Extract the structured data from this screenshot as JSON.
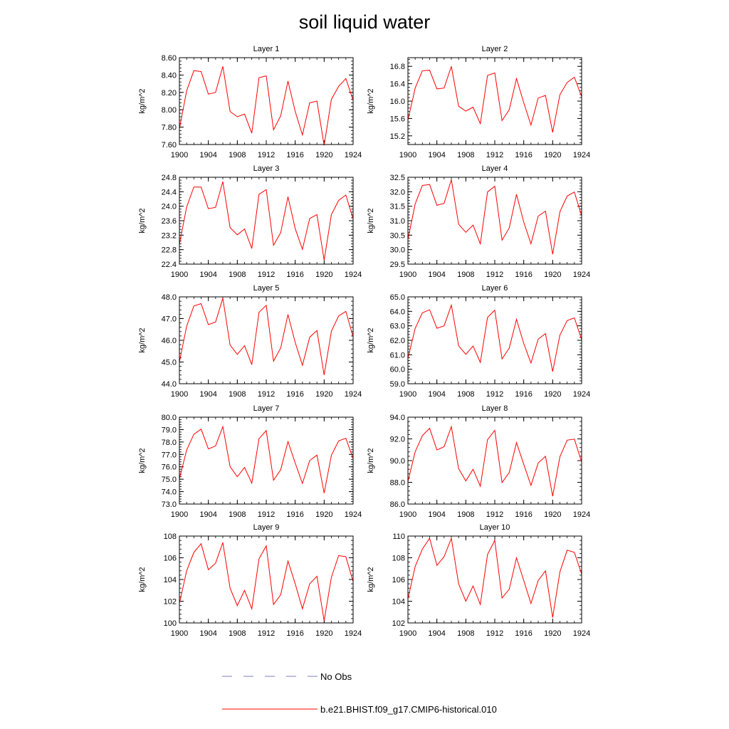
{
  "figure": {
    "title": "soil liquid water"
  },
  "legend": {
    "obs_label": "No Obs",
    "model_label": "b.e21.BHIST.f09_g17.CMIP6-historical.010",
    "obs_color": "#7f7fbf",
    "model_color": "#ff0000"
  },
  "chart_data": [
    {
      "type": "line",
      "title": "Layer 1",
      "ylabel": "kg/m^2",
      "xlim": [
        1900,
        1924
      ],
      "ylim": [
        7.6,
        8.6
      ],
      "xticks": [
        "1900",
        "1904",
        "1908",
        "1912",
        "1916",
        "1920",
        "1924"
      ],
      "yticks": [
        "7.60",
        "7.80",
        "8.00",
        "8.20",
        "8.40",
        "8.60"
      ],
      "x": [
        1900,
        1901,
        1902,
        1903,
        1904,
        1905,
        1906,
        1907,
        1908,
        1909,
        1910,
        1911,
        1912,
        1913,
        1914,
        1915,
        1916,
        1917,
        1918,
        1919,
        1920,
        1921,
        1922,
        1923,
        1924
      ],
      "series": [
        {
          "name": "b.e21.BHIST.f09_g17.CMIP6-historical.010",
          "values": [
            7.78,
            8.22,
            8.45,
            8.44,
            8.18,
            8.2,
            8.5,
            7.98,
            7.92,
            7.95,
            7.73,
            8.37,
            8.39,
            7.77,
            7.93,
            8.33,
            7.98,
            7.71,
            8.08,
            8.1,
            7.59,
            8.12,
            8.27,
            8.36,
            8.11
          ]
        }
      ]
    },
    {
      "type": "line",
      "title": "Layer 2",
      "ylabel": "kg/m^2",
      "xlim": [
        1900,
        1924
      ],
      "ylim": [
        15.0,
        17.0
      ],
      "xticks": [
        "1900",
        "1904",
        "1908",
        "1912",
        "1916",
        "1920",
        "1924"
      ],
      "yticks": [
        "15.2",
        "15.6",
        "16.0",
        "16.4",
        "16.8"
      ],
      "x": [
        1900,
        1901,
        1902,
        1903,
        1904,
        1905,
        1906,
        1907,
        1908,
        1909,
        1910,
        1911,
        1912,
        1913,
        1914,
        1915,
        1916,
        1917,
        1918,
        1919,
        1920,
        1921,
        1922,
        1923,
        1924
      ],
      "series": [
        {
          "name": "b.e21.BHIST.f09_g17.CMIP6-historical.010",
          "values": [
            15.56,
            16.3,
            16.7,
            16.71,
            16.28,
            16.3,
            16.8,
            15.88,
            15.77,
            15.86,
            15.48,
            16.59,
            16.65,
            15.55,
            15.8,
            16.52,
            15.96,
            15.45,
            16.07,
            16.13,
            15.28,
            16.15,
            16.43,
            16.55,
            16.1
          ]
        }
      ]
    },
    {
      "type": "line",
      "title": "Layer 3",
      "ylabel": "kg/m^2",
      "xlim": [
        1900,
        1924
      ],
      "ylim": [
        22.4,
        24.8
      ],
      "xticks": [
        "1900",
        "1904",
        "1908",
        "1912",
        "1916",
        "1920",
        "1924"
      ],
      "yticks": [
        "22.4",
        "22.8",
        "23.2",
        "23.6",
        "24.0",
        "24.4",
        "24.8"
      ],
      "x": [
        1900,
        1901,
        1902,
        1903,
        1904,
        1905,
        1906,
        1907,
        1908,
        1909,
        1910,
        1911,
        1912,
        1913,
        1914,
        1915,
        1916,
        1917,
        1918,
        1919,
        1920,
        1921,
        1922,
        1923,
        1924
      ],
      "series": [
        {
          "name": "b.e21.BHIST.f09_g17.CMIP6-historical.010",
          "values": [
            22.95,
            23.98,
            24.53,
            24.53,
            23.93,
            23.97,
            24.68,
            23.41,
            23.21,
            23.37,
            22.83,
            24.33,
            24.46,
            22.92,
            23.27,
            24.26,
            23.38,
            22.81,
            23.66,
            23.77,
            22.51,
            23.77,
            24.16,
            24.31,
            23.65
          ]
        }
      ]
    },
    {
      "type": "line",
      "title": "Layer 4",
      "ylabel": "kg/m^2",
      "xlim": [
        1900,
        1924
      ],
      "ylim": [
        29.5,
        32.5
      ],
      "xticks": [
        "1900",
        "1904",
        "1908",
        "1912",
        "1916",
        "1920",
        "1924"
      ],
      "yticks": [
        "29.5",
        "30.0",
        "30.5",
        "31.0",
        "31.5",
        "32.0",
        "32.5"
      ],
      "x": [
        1900,
        1901,
        1902,
        1903,
        1904,
        1905,
        1906,
        1907,
        1908,
        1909,
        1910,
        1911,
        1912,
        1913,
        1914,
        1915,
        1916,
        1917,
        1918,
        1919,
        1920,
        1921,
        1922,
        1923,
        1924
      ],
      "series": [
        {
          "name": "b.e21.BHIST.f09_g17.CMIP6-historical.010",
          "values": [
            30.35,
            31.58,
            32.22,
            32.25,
            31.53,
            31.6,
            32.42,
            30.88,
            30.6,
            30.85,
            30.2,
            31.99,
            32.19,
            30.33,
            30.75,
            31.91,
            30.95,
            30.2,
            31.16,
            31.33,
            29.84,
            31.31,
            31.85,
            31.99,
            31.17
          ]
        }
      ]
    },
    {
      "type": "line",
      "title": "Layer 5",
      "ylabel": "kg/m^2",
      "xlim": [
        1900,
        1924
      ],
      "ylim": [
        44.0,
        48.0
      ],
      "xticks": [
        "1900",
        "1904",
        "1908",
        "1912",
        "1916",
        "1920",
        "1924"
      ],
      "yticks": [
        "44.0",
        "45.0",
        "46.0",
        "47.0",
        "48.0"
      ],
      "x": [
        1900,
        1901,
        1902,
        1903,
        1904,
        1905,
        1906,
        1907,
        1908,
        1909,
        1910,
        1911,
        1912,
        1913,
        1914,
        1915,
        1916,
        1917,
        1918,
        1919,
        1920,
        1921,
        1922,
        1923,
        1924
      ],
      "series": [
        {
          "name": "b.e21.BHIST.f09_g17.CMIP6-historical.010",
          "values": [
            45.0,
            46.65,
            47.58,
            47.69,
            46.72,
            46.84,
            47.94,
            45.78,
            45.35,
            45.75,
            44.88,
            47.29,
            47.61,
            45.04,
            45.65,
            47.19,
            45.9,
            44.85,
            46.14,
            46.45,
            44.4,
            46.42,
            47.12,
            47.33,
            46.16
          ]
        }
      ]
    },
    {
      "type": "line",
      "title": "Layer 6",
      "ylabel": "kg/m^2",
      "xlim": [
        1900,
        1924
      ],
      "ylim": [
        59.0,
        65.0
      ],
      "xticks": [
        "1900",
        "1904",
        "1908",
        "1912",
        "1916",
        "1920",
        "1924"
      ],
      "yticks": [
        "59.0",
        "60.0",
        "61.0",
        "62.0",
        "63.0",
        "64.0",
        "65.0"
      ],
      "x": [
        1900,
        1901,
        1902,
        1903,
        1904,
        1905,
        1906,
        1907,
        1908,
        1909,
        1910,
        1911,
        1912,
        1913,
        1914,
        1915,
        1916,
        1917,
        1918,
        1919,
        1920,
        1921,
        1922,
        1923,
        1924
      ],
      "series": [
        {
          "name": "b.e21.BHIST.f09_g17.CMIP6-historical.010",
          "values": [
            60.75,
            62.82,
            63.9,
            64.11,
            62.83,
            63.0,
            64.43,
            61.62,
            61.03,
            61.6,
            60.47,
            63.58,
            64.08,
            60.71,
            61.46,
            63.45,
            61.78,
            60.43,
            62.08,
            62.46,
            59.84,
            62.36,
            63.36,
            63.55,
            62.05
          ]
        }
      ]
    },
    {
      "type": "line",
      "title": "Layer 7",
      "ylabel": "kg/m^2",
      "xlim": [
        1900,
        1924
      ],
      "ylim": [
        73.0,
        80.0
      ],
      "xticks": [
        "1900",
        "1904",
        "1908",
        "1912",
        "1916",
        "1920",
        "1924"
      ],
      "yticks": [
        "73.0",
        "74.0",
        "75.0",
        "76.0",
        "77.0",
        "78.0",
        "79.0",
        "80.0"
      ],
      "x": [
        1900,
        1901,
        1902,
        1903,
        1904,
        1905,
        1906,
        1907,
        1908,
        1909,
        1910,
        1911,
        1912,
        1913,
        1914,
        1915,
        1916,
        1917,
        1918,
        1919,
        1920,
        1921,
        1922,
        1923,
        1924
      ],
      "series": [
        {
          "name": "b.e21.BHIST.f09_g17.CMIP6-historical.010",
          "values": [
            75.02,
            77.36,
            78.62,
            79.04,
            77.44,
            77.68,
            79.24,
            76.02,
            75.2,
            75.95,
            74.68,
            78.27,
            78.92,
            74.92,
            75.76,
            78.04,
            76.3,
            74.66,
            76.5,
            76.95,
            73.88,
            76.93,
            78.09,
            78.3,
            76.66
          ]
        }
      ]
    },
    {
      "type": "line",
      "title": "Layer 8",
      "ylabel": "kg/m^2",
      "xlim": [
        1900,
        1924
      ],
      "ylim": [
        86.0,
        94.0
      ],
      "xticks": [
        "1900",
        "1904",
        "1908",
        "1912",
        "1916",
        "1920",
        "1924"
      ],
      "yticks": [
        "86.0",
        "88.0",
        "90.0",
        "92.0",
        "94.0"
      ],
      "x": [
        1900,
        1901,
        1902,
        1903,
        1904,
        1905,
        1906,
        1907,
        1908,
        1909,
        1910,
        1911,
        1912,
        1913,
        1914,
        1915,
        1916,
        1917,
        1918,
        1919,
        1920,
        1921,
        1922,
        1923,
        1924
      ],
      "series": [
        {
          "name": "b.e21.BHIST.f09_g17.CMIP6-historical.010",
          "values": [
            88.07,
            90.82,
            92.3,
            92.98,
            90.98,
            91.28,
            93.13,
            89.26,
            88.13,
            89.2,
            87.63,
            91.92,
            92.79,
            87.98,
            88.9,
            91.66,
            89.66,
            87.72,
            89.78,
            90.4,
            86.72,
            90.36,
            91.88,
            91.98,
            89.86
          ]
        }
      ]
    },
    {
      "type": "line",
      "title": "Layer 9",
      "ylabel": "kg/m^2",
      "xlim": [
        1900,
        1924
      ],
      "ylim": [
        100,
        108
      ],
      "xticks": [
        "1900",
        "1904",
        "1908",
        "1912",
        "1916",
        "1920",
        "1924"
      ],
      "yticks": [
        "100",
        "102",
        "104",
        "106",
        "108"
      ],
      "x": [
        1900,
        1901,
        1902,
        1903,
        1904,
        1905,
        1906,
        1907,
        1908,
        1909,
        1910,
        1911,
        1912,
        1913,
        1914,
        1915,
        1916,
        1917,
        1918,
        1919,
        1920,
        1921,
        1922,
        1923,
        1924
      ],
      "series": [
        {
          "name": "b.e21.BHIST.f09_g17.CMIP6-historical.010",
          "values": [
            101.8,
            104.8,
            106.5,
            107.3,
            104.9,
            105.5,
            107.4,
            103.2,
            101.6,
            103.0,
            101.3,
            105.9,
            107.1,
            101.7,
            102.6,
            105.7,
            103.6,
            101.3,
            103.6,
            104.3,
            100.2,
            104.2,
            106.2,
            106.1,
            103.8
          ]
        }
      ]
    },
    {
      "type": "line",
      "title": "Layer 10",
      "ylabel": "kg/m^2",
      "xlim": [
        1900,
        1924
      ],
      "ylim": [
        102,
        110
      ],
      "xticks": [
        "1900",
        "1904",
        "1908",
        "1912",
        "1916",
        "1920",
        "1924"
      ],
      "yticks": [
        "102",
        "104",
        "106",
        "108",
        "110"
      ],
      "x": [
        1900,
        1901,
        1902,
        1903,
        1904,
        1905,
        1906,
        1907,
        1908,
        1909,
        1910,
        1911,
        1912,
        1913,
        1914,
        1915,
        1916,
        1917,
        1918,
        1919,
        1920,
        1921,
        1922,
        1923,
        1924
      ],
      "series": [
        {
          "name": "b.e21.BHIST.f09_g17.CMIP6-historical.010",
          "values": [
            104.2,
            107.2,
            108.8,
            109.8,
            107.3,
            108.1,
            109.8,
            105.6,
            104.0,
            105.4,
            103.7,
            108.3,
            109.6,
            104.3,
            105.1,
            108.0,
            105.9,
            103.8,
            105.9,
            106.8,
            102.5,
            106.7,
            108.7,
            108.5,
            106.5
          ]
        }
      ]
    }
  ]
}
